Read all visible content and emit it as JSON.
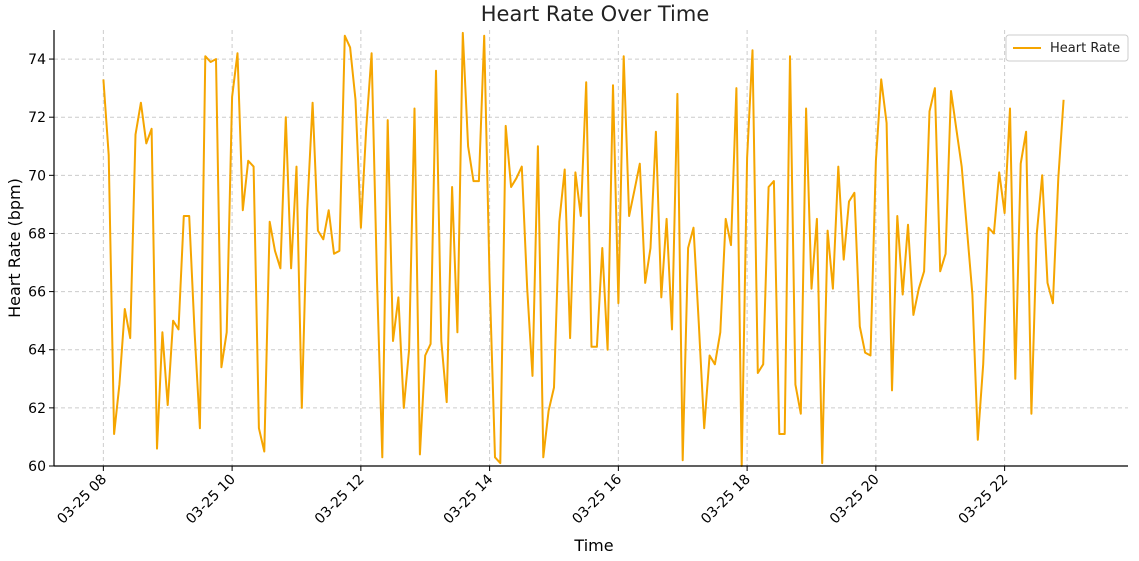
{
  "chart_data": {
    "type": "line",
    "title": "Heart Rate Over Time",
    "xlabel": "Time",
    "ylabel": "Heart Rate (bpm)",
    "x_ticks": [
      "03-25 08",
      "03-25 10",
      "03-25 12",
      "03-25 14",
      "03-25 16",
      "03-25 18",
      "03-25 20",
      "03-25 22"
    ],
    "y_ticks": [
      "60",
      "62",
      "64",
      "66",
      "68",
      "70",
      "72",
      "74"
    ],
    "ylim": [
      60,
      75
    ],
    "xlim": [
      "2024-03-25 07:14",
      "2024-03-25 23:55"
    ],
    "grid": true,
    "legend_position": "top-right",
    "series": [
      {
        "name": "Heart Rate",
        "color": "#f5a500",
        "x": [
          "2024-03-25 08:00",
          "2024-03-25 08:05",
          "2024-03-25 08:10",
          "2024-03-25 08:15",
          "2024-03-25 08:20",
          "2024-03-25 08:25",
          "2024-03-25 08:30",
          "2024-03-25 08:35",
          "2024-03-25 08:40",
          "2024-03-25 08:45",
          "2024-03-25 08:50",
          "2024-03-25 08:55",
          "2024-03-25 09:00",
          "2024-03-25 09:05",
          "2024-03-25 09:10",
          "2024-03-25 09:15",
          "2024-03-25 09:20",
          "2024-03-25 09:25",
          "2024-03-25 09:30",
          "2024-03-25 09:35",
          "2024-03-25 09:40",
          "2024-03-25 09:45",
          "2024-03-25 09:50",
          "2024-03-25 09:55",
          "2024-03-25 10:00",
          "2024-03-25 10:05",
          "2024-03-25 10:10",
          "2024-03-25 10:15",
          "2024-03-25 10:20",
          "2024-03-25 10:25",
          "2024-03-25 10:30",
          "2024-03-25 10:35",
          "2024-03-25 10:40",
          "2024-03-25 10:45",
          "2024-03-25 10:50",
          "2024-03-25 10:55",
          "2024-03-25 11:00",
          "2024-03-25 11:05",
          "2024-03-25 11:10",
          "2024-03-25 11:15",
          "2024-03-25 11:20",
          "2024-03-25 11:25",
          "2024-03-25 11:30",
          "2024-03-25 11:35",
          "2024-03-25 11:40",
          "2024-03-25 11:45",
          "2024-03-25 11:50",
          "2024-03-25 11:55",
          "2024-03-25 12:00",
          "2024-03-25 12:05",
          "2024-03-25 12:10",
          "2024-03-25 12:15",
          "2024-03-25 12:20",
          "2024-03-25 12:25",
          "2024-03-25 12:30",
          "2024-03-25 12:35",
          "2024-03-25 12:40",
          "2024-03-25 12:45",
          "2024-03-25 12:50",
          "2024-03-25 12:55",
          "2024-03-25 13:00",
          "2024-03-25 13:05",
          "2024-03-25 13:10",
          "2024-03-25 13:15",
          "2024-03-25 13:20",
          "2024-03-25 13:25",
          "2024-03-25 13:30",
          "2024-03-25 13:35",
          "2024-03-25 13:40",
          "2024-03-25 13:45",
          "2024-03-25 13:50",
          "2024-03-25 13:55",
          "2024-03-25 14:00",
          "2024-03-25 14:05",
          "2024-03-25 14:10",
          "2024-03-25 14:15",
          "2024-03-25 14:20",
          "2024-03-25 14:25",
          "2024-03-25 14:30",
          "2024-03-25 14:35",
          "2024-03-25 14:40",
          "2024-03-25 14:45",
          "2024-03-25 14:50",
          "2024-03-25 14:55",
          "2024-03-25 15:00",
          "2024-03-25 15:05",
          "2024-03-25 15:10",
          "2024-03-25 15:15",
          "2024-03-25 15:20",
          "2024-03-25 15:25",
          "2024-03-25 15:30",
          "2024-03-25 15:35",
          "2024-03-25 15:40",
          "2024-03-25 15:45",
          "2024-03-25 15:50",
          "2024-03-25 15:55",
          "2024-03-25 16:00",
          "2024-03-25 16:05",
          "2024-03-25 16:10",
          "2024-03-25 16:15",
          "2024-03-25 16:20",
          "2024-03-25 16:25",
          "2024-03-25 16:30",
          "2024-03-25 16:35",
          "2024-03-25 16:40",
          "2024-03-25 16:45",
          "2024-03-25 16:50",
          "2024-03-25 16:55",
          "2024-03-25 17:00",
          "2024-03-25 17:05",
          "2024-03-25 17:10",
          "2024-03-25 17:15",
          "2024-03-25 17:20",
          "2024-03-25 17:25",
          "2024-03-25 17:30",
          "2024-03-25 17:35",
          "2024-03-25 17:40",
          "2024-03-25 17:45",
          "2024-03-25 17:50",
          "2024-03-25 17:55",
          "2024-03-25 18:00",
          "2024-03-25 18:05",
          "2024-03-25 18:10",
          "2024-03-25 18:15",
          "2024-03-25 18:20",
          "2024-03-25 18:25",
          "2024-03-25 18:30",
          "2024-03-25 18:35",
          "2024-03-25 18:40",
          "2024-03-25 18:45",
          "2024-03-25 18:50",
          "2024-03-25 18:55",
          "2024-03-25 19:00",
          "2024-03-25 19:05",
          "2024-03-25 19:10",
          "2024-03-25 19:15",
          "2024-03-25 19:20",
          "2024-03-25 19:25",
          "2024-03-25 19:30",
          "2024-03-25 19:35",
          "2024-03-25 19:40",
          "2024-03-25 19:45",
          "2024-03-25 19:50",
          "2024-03-25 19:55",
          "2024-03-25 20:00",
          "2024-03-25 20:05",
          "2024-03-25 20:10",
          "2024-03-25 20:15",
          "2024-03-25 20:20",
          "2024-03-25 20:25",
          "2024-03-25 20:30",
          "2024-03-25 20:35",
          "2024-03-25 20:40",
          "2024-03-25 20:45",
          "2024-03-25 20:50",
          "2024-03-25 20:55",
          "2024-03-25 21:00",
          "2024-03-25 21:05",
          "2024-03-25 21:10",
          "2024-03-25 21:15",
          "2024-03-25 21:20",
          "2024-03-25 21:30",
          "2024-03-25 21:35",
          "2024-03-25 21:40",
          "2024-03-25 21:45",
          "2024-03-25 21:50",
          "2024-03-25 21:55",
          "2024-03-25 22:00",
          "2024-03-25 22:05",
          "2024-03-25 22:10",
          "2024-03-25 22:15",
          "2024-03-25 22:20",
          "2024-03-25 22:25",
          "2024-03-25 22:30",
          "2024-03-25 22:35",
          "2024-03-25 22:40",
          "2024-03-25 22:45",
          "2024-03-25 22:50",
          "2024-03-25 22:55"
        ],
        "y": [
          73.3,
          70.7,
          61.1,
          62.8,
          65.4,
          64.4,
          71.4,
          72.5,
          71.1,
          71.6,
          60.6,
          64.6,
          62.1,
          65.0,
          64.7,
          68.6,
          68.6,
          64.6,
          61.3,
          74.1,
          73.9,
          74.0,
          63.4,
          64.6,
          72.7,
          74.2,
          68.8,
          70.5,
          70.3,
          61.3,
          60.5,
          68.4,
          67.4,
          66.8,
          72.0,
          66.8,
          70.3,
          62.0,
          68.8,
          72.5,
          68.1,
          67.8,
          68.8,
          67.3,
          67.4,
          74.8,
          74.4,
          72.6,
          68.2,
          71.6,
          74.2,
          66.4,
          60.3,
          71.9,
          64.3,
          65.8,
          62.0,
          64.0,
          72.3,
          60.4,
          63.8,
          64.2,
          73.6,
          64.3,
          62.2,
          69.6,
          64.6,
          74.9,
          71.0,
          69.8,
          69.8,
          74.8,
          66.4,
          60.3,
          60.1,
          71.7,
          69.6,
          69.9,
          70.3,
          66.1,
          63.1,
          71.0,
          60.3,
          61.9,
          62.7,
          68.4,
          70.2,
          64.4,
          70.1,
          68.6,
          73.2,
          64.1,
          64.1,
          67.5,
          64.0,
          73.1,
          65.6,
          74.1,
          68.6,
          69.5,
          70.4,
          66.3,
          67.5,
          71.5,
          65.8,
          68.5,
          64.7,
          72.8,
          60.2,
          67.5,
          68.2,
          64.9,
          61.3,
          63.8,
          63.5,
          64.6,
          68.5,
          67.6,
          73.0,
          60.0,
          70.6,
          74.3,
          63.2,
          63.5,
          69.6,
          69.8,
          61.1,
          61.1,
          74.1,
          62.8,
          61.8,
          72.3,
          66.1,
          68.5,
          60.1,
          68.1,
          66.1,
          70.3,
          67.1,
          69.1,
          69.4,
          64.8,
          63.9,
          63.8,
          70.5,
          73.3,
          71.8,
          62.6,
          68.6,
          65.9,
          68.3,
          65.2,
          66.1,
          66.7,
          72.2,
          73.0,
          66.7,
          67.3,
          72.9,
          71.6,
          70.3,
          65.9,
          60.9,
          63.5,
          68.2,
          68.0,
          70.1,
          68.7,
          72.3,
          63.0,
          70.4,
          71.5,
          61.8,
          68.0,
          70.0,
          66.3,
          65.6,
          69.9,
          72.6
        ]
      }
    ]
  }
}
